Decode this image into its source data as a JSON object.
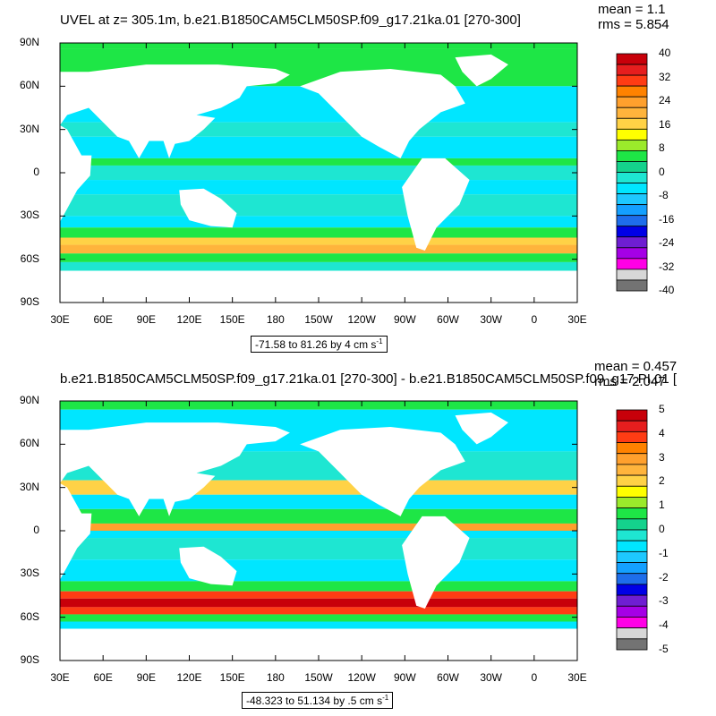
{
  "panels": [
    {
      "title": "UVEL at z= 305.1m, b.e21.B1850CAM5CLM50SP.f09_g17.21ka.01 [270-300]",
      "mean_text": "mean = 1.1",
      "rms_text": "rms = 5.854",
      "range_text": "-71.58 to 81.26 by 4 cm s",
      "range_unit_exp": "-1",
      "colorbar_labels": [
        "40",
        "32",
        "24",
        "16",
        "8",
        "0",
        "-8",
        "-16",
        "-24",
        "-32",
        "-40"
      ]
    },
    {
      "title": "b.e21.B1850CAM5CLM50SP.f09_g17.21ka.01 [270-300] - b.e21.B1850CAM5CLM50SP.f09_g17.PI.01 [",
      "mean_text": "mean = 0.457",
      "rms_text": "rms = 2.047",
      "range_text": "-48.323 to 51.134 by .5 cm s",
      "range_unit_exp": "-1",
      "colorbar_labels": [
        "5",
        "4",
        "3",
        "2",
        "1",
        "0",
        "-1",
        "-2",
        "-3",
        "-4",
        "-5"
      ]
    }
  ],
  "lat_ticks": [
    "90N",
    "60N",
    "30N",
    "0",
    "30S",
    "60S",
    "90S"
  ],
  "lon_ticks": [
    "30E",
    "60E",
    "90E",
    "120E",
    "150E",
    "180",
    "150W",
    "120W",
    "90W",
    "60W",
    "30W",
    "0",
    "30E"
  ],
  "colorbar_colors": [
    "#c8000a",
    "#e61e1e",
    "#ff3c14",
    "#ff8200",
    "#ffa02d",
    "#ffb43c",
    "#ffd246",
    "#ffff00",
    "#9bea2b",
    "#1ee646",
    "#14d28c",
    "#1ee6d2",
    "#00e6ff",
    "#1ec8ff",
    "#14a0ff",
    "#1e6eeb",
    "#0000e6",
    "#6e1ed2",
    "#a500e6",
    "#ff00e6",
    "#d7d7d7",
    "#737373"
  ]
}
